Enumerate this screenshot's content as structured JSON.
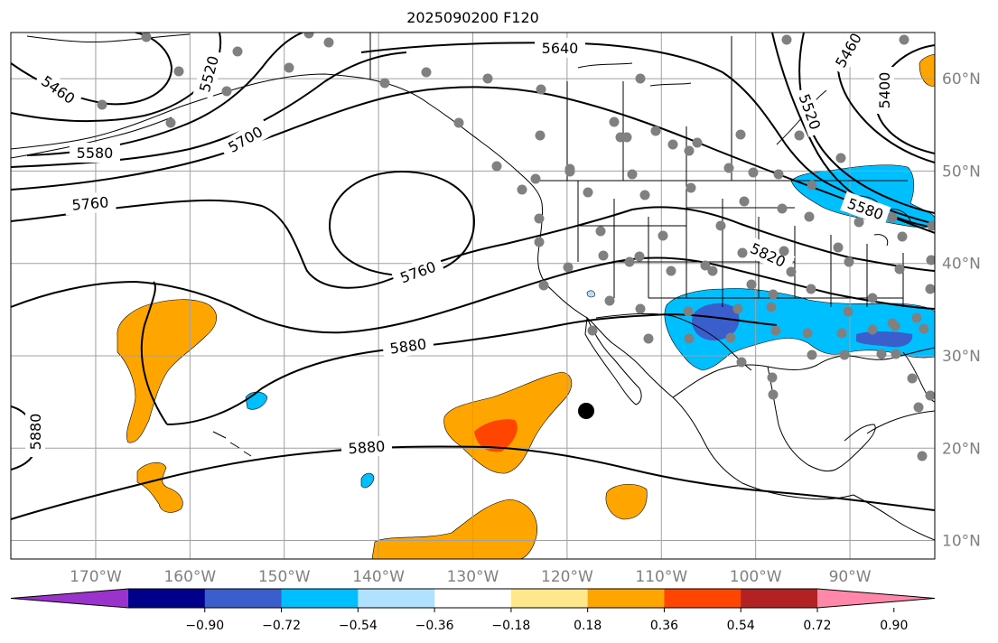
{
  "title": "2025090200 F120",
  "map": {
    "lon_range": [
      -179,
      -81
    ],
    "lat_range": [
      8,
      65
    ],
    "lon_ticks": [
      {
        "value": -170,
        "label": "170°W"
      },
      {
        "value": -160,
        "label": "160°W"
      },
      {
        "value": -150,
        "label": "150°W"
      },
      {
        "value": -140,
        "label": "140°W"
      },
      {
        "value": -130,
        "label": "130°W"
      },
      {
        "value": -120,
        "label": "120°W"
      },
      {
        "value": -110,
        "label": "110°W"
      },
      {
        "value": -100,
        "label": "100°W"
      },
      {
        "value": -90,
        "label": "90°W"
      }
    ],
    "lat_ticks": [
      {
        "value": 10,
        "label": "10°N"
      },
      {
        "value": 20,
        "label": "20°N"
      },
      {
        "value": 30,
        "label": "30°N"
      },
      {
        "value": 40,
        "label": "40°N"
      },
      {
        "value": 50,
        "label": "50°N"
      },
      {
        "value": 60,
        "label": "60°N"
      }
    ],
    "grid": true,
    "contour_labels": [
      "5640",
      "5460",
      "5520",
      "5580",
      "5700",
      "5760",
      "5760",
      "5820",
      "5880",
      "5880",
      "5880",
      "5400",
      "5460",
      "5520",
      "5580"
    ],
    "colors": {
      "grid": "#a0a0a0",
      "coast": "#000000",
      "station": "#808080",
      "marker": "#000000"
    }
  },
  "colorbar": {
    "colors": [
      "#9933cc",
      "#00008b",
      "#3a5fcd",
      "#00bfff",
      "#b0e2ff",
      "#ffffff",
      "#ffe88c",
      "#ffa500",
      "#ff4500",
      "#b22222",
      "#ff88aa"
    ],
    "labels": [
      "−0.90",
      "−0.72",
      "−0.54",
      "−0.36",
      "−0.18",
      "0.18",
      "0.36",
      "0.54",
      "0.72",
      "0.90"
    ]
  }
}
